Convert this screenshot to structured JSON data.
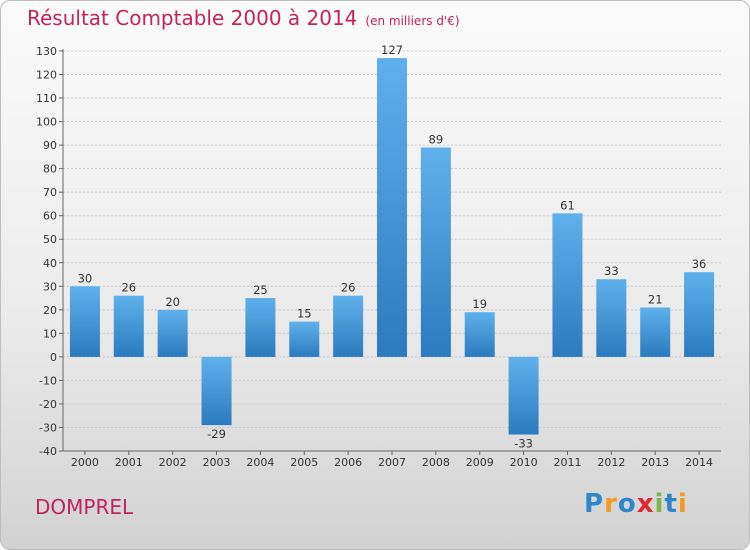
{
  "header": {
    "title": "Résultat Comptable 2000 à 2014",
    "subtitle": "(en milliers d'€)"
  },
  "commune": "DOMPREL",
  "logo": {
    "text": "Proxiti",
    "letters": [
      "P",
      "r",
      "o",
      "x",
      "i",
      "t",
      "i"
    ],
    "colors": [
      "#2f86c8",
      "#f39a1f",
      "#2f86c8",
      "#e3262f",
      "#7ab648",
      "#2f86c8",
      "#f39a1f"
    ]
  },
  "colors": {
    "title": "#c0245c",
    "bar_top": "#5fb1ec",
    "bar_bottom": "#2a7bbf"
  },
  "chart_data": {
    "type": "bar",
    "title": "Résultat Comptable 2000 à 2014",
    "subtitle": "(en milliers d'€)",
    "categories": [
      "2000",
      "2001",
      "2002",
      "2003",
      "2004",
      "2005",
      "2006",
      "2007",
      "2008",
      "2009",
      "2010",
      "2011",
      "2012",
      "2013",
      "2014"
    ],
    "values": [
      30,
      26,
      20,
      -29,
      25,
      15,
      26,
      127,
      89,
      19,
      -33,
      61,
      33,
      21,
      36
    ],
    "ylim": [
      -40,
      130
    ],
    "yticks": [
      -40,
      -30,
      -20,
      -10,
      0,
      10,
      20,
      30,
      40,
      50,
      60,
      70,
      80,
      90,
      100,
      110,
      120,
      130
    ],
    "grid": true,
    "xlabel": "",
    "ylabel": ""
  }
}
